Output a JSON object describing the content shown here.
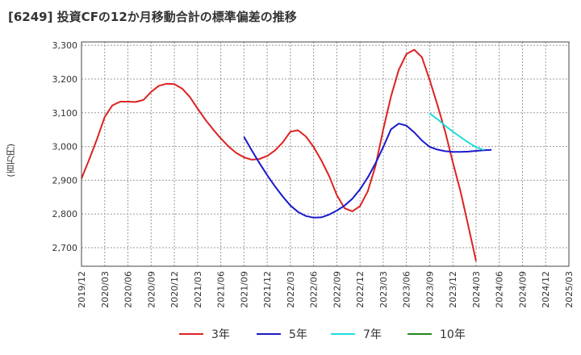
{
  "title": "[6249]  投資CFの12か月移動合計の標準偏差の推移",
  "unit_label": "(百万円)",
  "chart_data": {
    "type": "line",
    "ylim": [
      2645,
      3310
    ],
    "yticks": [
      2700,
      2800,
      2900,
      3000,
      3100,
      3200,
      3300
    ],
    "ytick_labels": [
      "2,700",
      "2,800",
      "2,900",
      "3,000",
      "3,100",
      "3,200",
      "3,300"
    ],
    "xtick_labels": [
      "2019/12",
      "2020/03",
      "2020/06",
      "2020/09",
      "2020/12",
      "2021/03",
      "2021/06",
      "2021/09",
      "2021/12",
      "2022/03",
      "2022/06",
      "2022/09",
      "2022/12",
      "2023/03",
      "2023/06",
      "2023/09",
      "2023/12",
      "2024/03",
      "2024/06",
      "2024/09",
      "2024/12",
      "2025/03"
    ],
    "grid": true,
    "legend_position": "bottom",
    "series": [
      {
        "name": "3年",
        "color": "#dd2222",
        "start_month_index": 0,
        "values": [
          2905,
          2962,
          3022,
          3088,
          3122,
          3133,
          3133,
          3132,
          3138,
          3162,
          3180,
          3186,
          3185,
          3172,
          3147,
          3113,
          3080,
          3051,
          3024,
          3000,
          2981,
          2968,
          2961,
          2963,
          2972,
          2988,
          3012,
          3044,
          3048,
          3030,
          2999,
          2959,
          2913,
          2856,
          2817,
          2808,
          2823,
          2867,
          2942,
          3050,
          3148,
          3227,
          3274,
          3287,
          3265,
          3198,
          3124,
          3045,
          2953,
          2866,
          2764,
          2660
        ]
      },
      {
        "name": "5年",
        "color": "#1a1acc",
        "start_month_index": 21,
        "values": [
          3029,
          2989,
          2951,
          2915,
          2882,
          2852,
          2825,
          2806,
          2794,
          2789,
          2790,
          2798,
          2810,
          2825,
          2845,
          2873,
          2908,
          2950,
          2998,
          3051,
          3068,
          3062,
          3042,
          3018,
          2999,
          2991,
          2986,
          2984,
          2984,
          2985,
          2987,
          2989,
          2990
        ]
      },
      {
        "name": "7年",
        "color": "#22dddd",
        "start_month_index": 45,
        "values": [
          3098,
          3081,
          3062,
          3044,
          3028,
          3012,
          2998,
          2990
        ]
      },
      {
        "name": "10年",
        "color": "#228822",
        "start_month_index": 0,
        "values": []
      }
    ]
  }
}
